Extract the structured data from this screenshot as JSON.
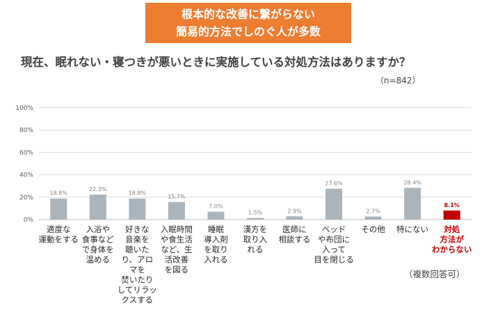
{
  "banner": {
    "line1": "根本的な改善に繋がらない",
    "line2": "簡易的方法でしのぐ人が多数"
  },
  "question": "現在、眠れない・寝つきが悪いときに実施している対処方法はありますか？",
  "sample_size": "（n=842）",
  "note": "（複数回答可）",
  "colors": {
    "banner": "#ed7d31",
    "bar": "#aab4bc",
    "highlight": "#c00000"
  },
  "chart_data": {
    "type": "bar",
    "title": "",
    "xlabel": "",
    "ylabel": "",
    "ylim": [
      0,
      100
    ],
    "yticks": [
      0,
      20,
      40,
      60,
      80,
      100
    ],
    "ytick_labels": [
      "0%",
      "20%",
      "40%",
      "60%",
      "80%",
      "100%"
    ],
    "grid": true,
    "categories": [
      [
        "適度な",
        "運動をする"
      ],
      [
        "入浴や",
        "食事など",
        "で身体を",
        "温める"
      ],
      [
        "好きな",
        "音楽を",
        "聴いた",
        "り、アロ",
        "マを",
        "焚いたり",
        "してリラッ",
        "クスする"
      ],
      [
        "入眠時間",
        "や食生活",
        "など、生",
        "活改善",
        "を図る"
      ],
      [
        "睡眠",
        "導入剤",
        "を取り",
        "入れる"
      ],
      [
        "漢方を",
        "取り入",
        "れる"
      ],
      [
        "医師に",
        "相談する"
      ],
      [
        "ベッド",
        "や布団に",
        "入って",
        "目を閉じる"
      ],
      [
        "その他"
      ],
      [
        "特にない"
      ],
      [
        "対処",
        "方法が",
        "わからない"
      ]
    ],
    "values": [
      18.8,
      22.3,
      18.8,
      15.7,
      7.0,
      1.5,
      2.9,
      27.6,
      2.7,
      28.4,
      8.1
    ],
    "value_labels": [
      "18.8%",
      "22.3%",
      "18.8%",
      "15.7%",
      "7.0%",
      "1.5%",
      "2.9%",
      "27.6%",
      "2.7%",
      "28.4%",
      "8.1%"
    ],
    "highlight_index": 10
  }
}
